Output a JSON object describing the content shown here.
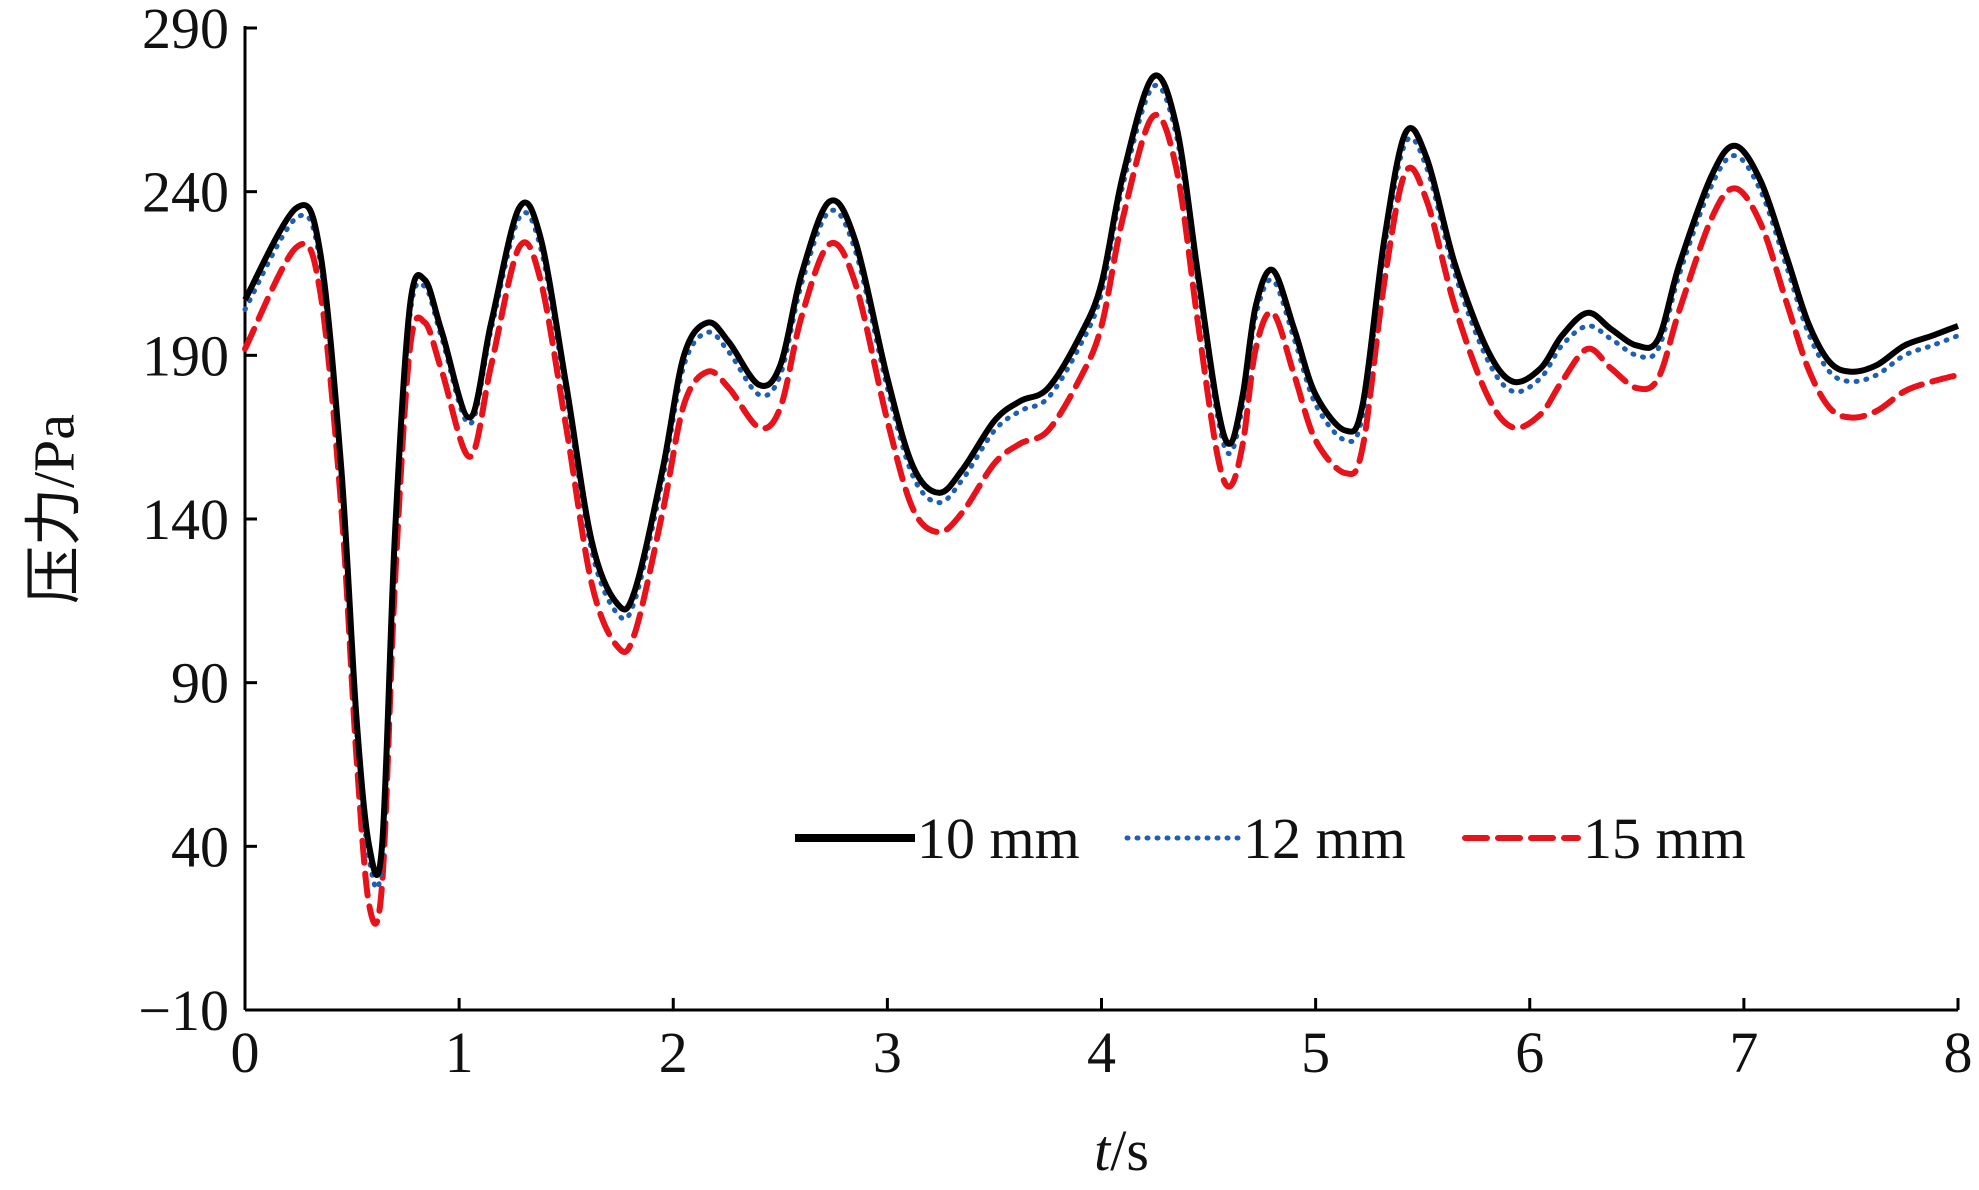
{
  "chart_data": {
    "type": "line",
    "xlabel": {
      "italic": "t",
      "rest": "/s"
    },
    "ylabel": "压力/Pa",
    "xlim": [
      0,
      8
    ],
    "ylim": [
      -10,
      290
    ],
    "x_ticks": [
      0,
      1,
      2,
      3,
      4,
      5,
      6,
      7,
      8
    ],
    "y_ticks": [
      -10,
      40,
      90,
      140,
      190,
      240,
      290
    ],
    "x_tick_labels": [
      "0",
      "1",
      "2",
      "3",
      "4",
      "5",
      "6",
      "7",
      "8"
    ],
    "y_tick_labels": [
      "−10",
      "40",
      "90",
      "140",
      "190",
      "240",
      "290"
    ],
    "grid": false,
    "legend_position": "bottom-right (horizontal)",
    "series": [
      {
        "name": "10 mm",
        "color": "#000000",
        "style": "solid",
        "points": [
          [
            0,
            207
          ],
          [
            0.24,
            235
          ],
          [
            0.35,
            222
          ],
          [
            0.45,
            155
          ],
          [
            0.52,
            80
          ],
          [
            0.58,
            40
          ],
          [
            0.64,
            40
          ],
          [
            0.7,
            135
          ],
          [
            0.77,
            205
          ],
          [
            0.84,
            213
          ],
          [
            0.92,
            197
          ],
          [
            1.05,
            171
          ],
          [
            1.15,
            200
          ],
          [
            1.28,
            235
          ],
          [
            1.38,
            226
          ],
          [
            1.5,
            181
          ],
          [
            1.62,
            133
          ],
          [
            1.74,
            114
          ],
          [
            1.82,
            118
          ],
          [
            1.95,
            155
          ],
          [
            2.05,
            190
          ],
          [
            2.16,
            200
          ],
          [
            2.26,
            194
          ],
          [
            2.4,
            181
          ],
          [
            2.5,
            187
          ],
          [
            2.6,
            215
          ],
          [
            2.73,
            237
          ],
          [
            2.85,
            225
          ],
          [
            3.0,
            183
          ],
          [
            3.12,
            156
          ],
          [
            3.24,
            148
          ],
          [
            3.35,
            155
          ],
          [
            3.5,
            170
          ],
          [
            3.62,
            176
          ],
          [
            3.75,
            180
          ],
          [
            3.9,
            196
          ],
          [
            4.0,
            212
          ],
          [
            4.1,
            245
          ],
          [
            4.24,
            275
          ],
          [
            4.35,
            260
          ],
          [
            4.45,
            215
          ],
          [
            4.54,
            175
          ],
          [
            4.6,
            163
          ],
          [
            4.66,
            178
          ],
          [
            4.72,
            205
          ],
          [
            4.8,
            216
          ],
          [
            4.9,
            198
          ],
          [
            5.0,
            178
          ],
          [
            5.14,
            167
          ],
          [
            5.22,
            175
          ],
          [
            5.32,
            225
          ],
          [
            5.42,
            258
          ],
          [
            5.52,
            250
          ],
          [
            5.65,
            218
          ],
          [
            5.8,
            192
          ],
          [
            5.92,
            182
          ],
          [
            6.05,
            186
          ],
          [
            6.15,
            196
          ],
          [
            6.27,
            203
          ],
          [
            6.38,
            198
          ],
          [
            6.5,
            193
          ],
          [
            6.6,
            195
          ],
          [
            6.7,
            218
          ],
          [
            6.85,
            245
          ],
          [
            6.96,
            254
          ],
          [
            7.08,
            243
          ],
          [
            7.2,
            220
          ],
          [
            7.3,
            200
          ],
          [
            7.4,
            188
          ],
          [
            7.5,
            185
          ],
          [
            7.62,
            187
          ],
          [
            7.75,
            193
          ],
          [
            7.88,
            196
          ],
          [
            8.0,
            199
          ]
        ]
      },
      {
        "name": "12 mm",
        "color": "#1f5fb0",
        "style": "dotted",
        "points": [
          [
            0,
            204
          ],
          [
            0.24,
            232
          ],
          [
            0.35,
            219
          ],
          [
            0.45,
            152
          ],
          [
            0.52,
            77
          ],
          [
            0.58,
            36
          ],
          [
            0.64,
            36
          ],
          [
            0.7,
            132
          ],
          [
            0.77,
            202
          ],
          [
            0.84,
            211
          ],
          [
            0.92,
            195
          ],
          [
            1.05,
            169
          ],
          [
            1.15,
            198
          ],
          [
            1.28,
            232
          ],
          [
            1.38,
            223
          ],
          [
            1.5,
            178
          ],
          [
            1.62,
            130
          ],
          [
            1.74,
            111
          ],
          [
            1.82,
            115
          ],
          [
            1.95,
            152
          ],
          [
            2.05,
            187
          ],
          [
            2.16,
            197
          ],
          [
            2.26,
            191
          ],
          [
            2.4,
            178
          ],
          [
            2.5,
            184
          ],
          [
            2.6,
            212
          ],
          [
            2.73,
            234
          ],
          [
            2.85,
            222
          ],
          [
            3.0,
            180
          ],
          [
            3.12,
            153
          ],
          [
            3.24,
            145
          ],
          [
            3.35,
            152
          ],
          [
            3.5,
            167
          ],
          [
            3.62,
            173
          ],
          [
            3.75,
            177
          ],
          [
            3.9,
            193
          ],
          [
            4.0,
            209
          ],
          [
            4.1,
            242
          ],
          [
            4.24,
            272
          ],
          [
            4.35,
            257
          ],
          [
            4.45,
            212
          ],
          [
            4.54,
            172
          ],
          [
            4.6,
            160
          ],
          [
            4.66,
            175
          ],
          [
            4.72,
            202
          ],
          [
            4.8,
            213
          ],
          [
            4.9,
            195
          ],
          [
            5.0,
            175
          ],
          [
            5.14,
            164
          ],
          [
            5.22,
            172
          ],
          [
            5.32,
            222
          ],
          [
            5.42,
            255
          ],
          [
            5.52,
            247
          ],
          [
            5.65,
            215
          ],
          [
            5.8,
            189
          ],
          [
            5.92,
            179
          ],
          [
            6.05,
            183
          ],
          [
            6.15,
            193
          ],
          [
            6.27,
            199
          ],
          [
            6.38,
            195
          ],
          [
            6.5,
            190
          ],
          [
            6.6,
            192
          ],
          [
            6.7,
            215
          ],
          [
            6.85,
            242
          ],
          [
            6.96,
            251
          ],
          [
            7.08,
            240
          ],
          [
            7.2,
            217
          ],
          [
            7.3,
            197
          ],
          [
            7.4,
            185
          ],
          [
            7.5,
            182
          ],
          [
            7.62,
            184
          ],
          [
            7.75,
            190
          ],
          [
            7.88,
            193
          ],
          [
            8.0,
            196
          ]
        ]
      },
      {
        "name": "15 mm",
        "color": "#e8121b",
        "style": "dashed",
        "points": [
          [
            0,
            192
          ],
          [
            0.24,
            223
          ],
          [
            0.35,
            210
          ],
          [
            0.45,
            143
          ],
          [
            0.52,
            68
          ],
          [
            0.58,
            22
          ],
          [
            0.64,
            28
          ],
          [
            0.7,
            120
          ],
          [
            0.77,
            192
          ],
          [
            0.84,
            200
          ],
          [
            0.92,
            185
          ],
          [
            1.05,
            159
          ],
          [
            1.15,
            187
          ],
          [
            1.28,
            223
          ],
          [
            1.38,
            213
          ],
          [
            1.5,
            168
          ],
          [
            1.62,
            120
          ],
          [
            1.74,
            101
          ],
          [
            1.82,
            105
          ],
          [
            1.95,
            142
          ],
          [
            2.05,
            175
          ],
          [
            2.16,
            185
          ],
          [
            2.26,
            180
          ],
          [
            2.4,
            168
          ],
          [
            2.5,
            174
          ],
          [
            2.6,
            202
          ],
          [
            2.73,
            224
          ],
          [
            2.85,
            212
          ],
          [
            3.0,
            170
          ],
          [
            3.12,
            143
          ],
          [
            3.24,
            136
          ],
          [
            3.35,
            142
          ],
          [
            3.5,
            157
          ],
          [
            3.62,
            163
          ],
          [
            3.75,
            167
          ],
          [
            3.9,
            183
          ],
          [
            4.0,
            199
          ],
          [
            4.1,
            232
          ],
          [
            4.24,
            263
          ],
          [
            4.35,
            247
          ],
          [
            4.45,
            200
          ],
          [
            4.54,
            160
          ],
          [
            4.6,
            150
          ],
          [
            4.66,
            163
          ],
          [
            4.72,
            192
          ],
          [
            4.8,
            203
          ],
          [
            4.9,
            184
          ],
          [
            5.0,
            164
          ],
          [
            5.14,
            154
          ],
          [
            5.22,
            162
          ],
          [
            5.32,
            212
          ],
          [
            5.42,
            246
          ],
          [
            5.52,
            237
          ],
          [
            5.65,
            205
          ],
          [
            5.8,
            178
          ],
          [
            5.92,
            168
          ],
          [
            6.05,
            172
          ],
          [
            6.15,
            182
          ],
          [
            6.27,
            192
          ],
          [
            6.38,
            186
          ],
          [
            6.5,
            180
          ],
          [
            6.6,
            183
          ],
          [
            6.7,
            204
          ],
          [
            6.85,
            232
          ],
          [
            6.96,
            241
          ],
          [
            7.08,
            230
          ],
          [
            7.2,
            206
          ],
          [
            7.3,
            186
          ],
          [
            7.4,
            174
          ],
          [
            7.5,
            171
          ],
          [
            7.62,
            173
          ],
          [
            7.75,
            179
          ],
          [
            7.88,
            182
          ],
          [
            8.0,
            184
          ]
        ]
      }
    ]
  }
}
